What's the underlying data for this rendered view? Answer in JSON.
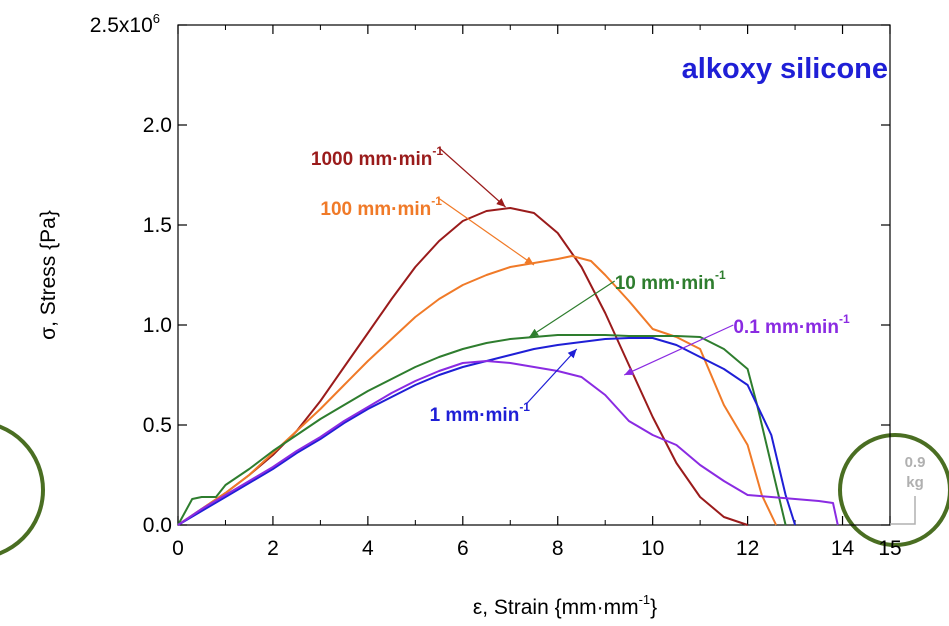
{
  "chart_data": {
    "type": "line",
    "title": "alkoxy silicone",
    "xlabel": "ε, Strain {mm·mm",
    "xlabel_sup": "-1",
    "xlabel_tail": "}",
    "ylabel": "σ, Stress {Pa}",
    "xlim": [
      0,
      15
    ],
    "ylim": [
      0,
      2500000
    ],
    "grid": false,
    "x_ticks": [
      0,
      2,
      4,
      6,
      8,
      10,
      12,
      14,
      15
    ],
    "x_tick_labels": [
      "0",
      "2",
      "4",
      "6",
      "8",
      "10",
      "12",
      "14",
      "15"
    ],
    "y_ticks": [
      0,
      500000,
      1000000,
      1500000,
      2000000,
      2500000
    ],
    "y_tick_labels": [
      "0.0",
      "0.5",
      "1.0",
      "1.5",
      "2.0",
      "2.5x10"
    ],
    "y_top_exponent": "6",
    "series": [
      {
        "name": "1000 mm·min",
        "sup": "-1",
        "color": "#9a1b1b",
        "x": [
          0,
          0.5,
          1,
          1.5,
          2,
          2.5,
          3,
          3.5,
          4,
          4.5,
          5,
          5.5,
          6,
          6.5,
          7,
          7.5,
          8,
          8.5,
          9,
          9.5,
          10,
          10.5,
          11,
          11.5,
          12
        ],
        "y": [
          0,
          80000,
          160000,
          250000,
          350000,
          470000,
          620000,
          790000,
          960000,
          1130000,
          1290000,
          1420000,
          1520000,
          1570000,
          1585000,
          1560000,
          1460000,
          1290000,
          1060000,
          800000,
          540000,
          310000,
          140000,
          40000,
          0
        ]
      },
      {
        "name": "100 mm·min",
        "sup": "-1",
        "color": "#f07a28",
        "x": [
          0,
          0.5,
          1,
          1.5,
          2,
          2.5,
          3,
          3.5,
          4,
          4.5,
          5,
          5.5,
          6,
          6.5,
          7,
          7.5,
          8,
          8.3,
          8.7,
          9,
          9.5,
          10,
          10.5,
          11,
          11.5,
          12,
          12.3,
          12.6
        ],
        "y": [
          0,
          80000,
          160000,
          250000,
          360000,
          470000,
          580000,
          700000,
          820000,
          930000,
          1040000,
          1130000,
          1200000,
          1250000,
          1290000,
          1310000,
          1330000,
          1345000,
          1320000,
          1250000,
          1120000,
          980000,
          940000,
          880000,
          600000,
          400000,
          150000,
          0
        ]
      },
      {
        "name": "10 mm·min",
        "sup": "-1",
        "color": "#2e7d2e",
        "x": [
          0,
          0.3,
          0.5,
          0.8,
          1,
          1.5,
          2,
          2.5,
          3,
          3.5,
          4,
          4.5,
          5,
          5.5,
          6,
          6.5,
          7,
          7.5,
          8,
          8.5,
          9,
          9.5,
          10,
          10.5,
          11,
          11.5,
          12,
          12.2,
          12.4,
          12.6,
          12.8
        ],
        "y": [
          0,
          130000,
          140000,
          140000,
          200000,
          280000,
          370000,
          450000,
          530000,
          600000,
          670000,
          730000,
          790000,
          840000,
          880000,
          910000,
          930000,
          940000,
          950000,
          950000,
          950000,
          945000,
          945000,
          945000,
          940000,
          880000,
          780000,
          600000,
          400000,
          200000,
          0
        ]
      },
      {
        "name": "1 mm·min",
        "sup": "-1",
        "color": "#1f1fd6",
        "x": [
          0,
          0.5,
          1,
          1.5,
          2,
          2.5,
          3,
          3.5,
          4,
          4.5,
          5,
          5.5,
          6,
          6.5,
          7,
          7.5,
          8,
          8.5,
          9,
          9.5,
          10,
          10.5,
          11,
          11.5,
          12,
          12.5,
          12.8,
          13
        ],
        "y": [
          0,
          70000,
          140000,
          210000,
          280000,
          360000,
          430000,
          510000,
          580000,
          640000,
          700000,
          750000,
          790000,
          820000,
          850000,
          880000,
          900000,
          915000,
          930000,
          935000,
          935000,
          900000,
          840000,
          780000,
          700000,
          450000,
          150000,
          0
        ]
      },
      {
        "name": "0.1 mm·min",
        "sup": "-1",
        "color": "#8a2be2",
        "x": [
          0,
          0.5,
          1,
          1.5,
          2,
          2.5,
          3,
          3.5,
          4,
          4.5,
          5,
          5.5,
          6,
          6.5,
          7,
          7.5,
          8,
          8.5,
          9,
          9.5,
          10,
          10.5,
          11,
          11.5,
          12,
          12.5,
          13,
          13.5,
          13.8,
          13.9
        ],
        "y": [
          0,
          80000,
          150000,
          220000,
          290000,
          370000,
          440000,
          520000,
          590000,
          660000,
          720000,
          770000,
          810000,
          820000,
          810000,
          790000,
          770000,
          740000,
          650000,
          520000,
          450000,
          400000,
          300000,
          220000,
          150000,
          140000,
          130000,
          120000,
          110000,
          0
        ]
      }
    ],
    "annotations": [
      {
        "series": 0,
        "label_pos": [
          2.8,
          1800000
        ],
        "arrow_to": [
          6.9,
          1590000
        ]
      },
      {
        "series": 1,
        "label_pos": [
          3.0,
          1550000
        ],
        "arrow_to": [
          7.5,
          1300000
        ]
      },
      {
        "series": 2,
        "label_pos": [
          9.2,
          1180000
        ],
        "arrow_to": [
          7.4,
          940000
        ]
      },
      {
        "series": 3,
        "label_pos": [
          5.3,
          520000
        ],
        "arrow_to": [
          8.4,
          880000
        ]
      },
      {
        "series": 4,
        "label_pos": [
          11.7,
          960000
        ],
        "arrow_to": [
          9.4,
          750000
        ]
      }
    ],
    "side_label": [
      "0.9",
      "kg"
    ]
  }
}
